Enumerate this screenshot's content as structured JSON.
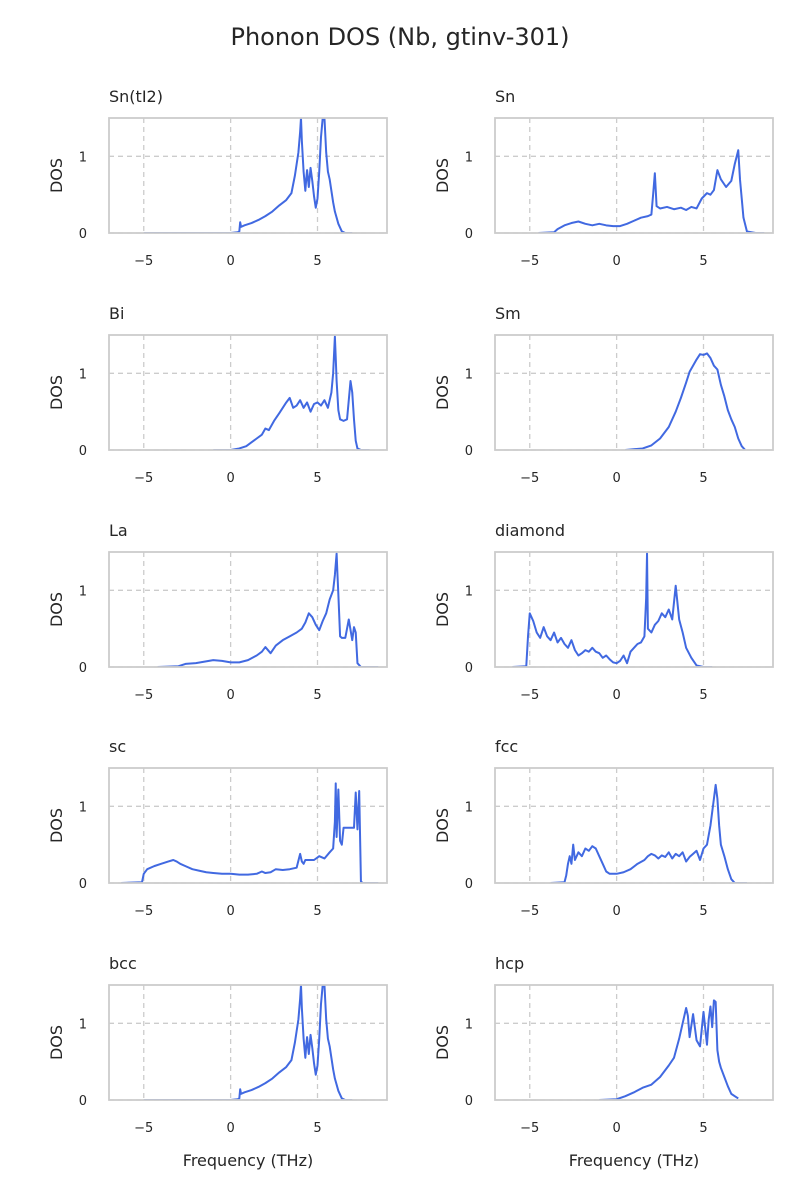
{
  "figure": {
    "title": "Phonon DOS (Nb, gtinv-301)",
    "line_color": "#4169e1",
    "grid_color": "#cccccc",
    "frame_color": "#cccccc",
    "text_color": "#262626"
  },
  "chart_data": [
    {
      "type": "line",
      "title": "Sn(tI2)",
      "xlabel": "",
      "ylabel": "DOS",
      "xlim": [
        -7,
        9
      ],
      "ylim": [
        0,
        1.5
      ],
      "xticks": [
        -5,
        0,
        5
      ],
      "xticklabels": [
        "−5",
        "0",
        "5"
      ],
      "yticks": [
        0,
        1
      ],
      "yticklabels": [
        "0",
        "1"
      ],
      "grid": true,
      "x": [
        -5,
        -3,
        -1,
        0,
        0.4,
        0.5,
        0.55,
        0.6,
        0.8,
        1.2,
        1.6,
        2.0,
        2.4,
        2.8,
        3.2,
        3.5,
        3.7,
        3.8,
        3.9,
        4.0,
        4.05,
        4.1,
        4.2,
        4.3,
        4.35,
        4.4,
        4.5,
        4.6,
        4.7,
        4.8,
        4.9,
        5.0,
        5.1,
        5.2,
        5.3,
        5.4,
        5.5,
        5.6,
        5.7,
        5.8,
        5.9,
        6.0,
        6.2,
        6.4,
        6.6,
        6.8,
        7.0
      ],
      "y": [
        0,
        0,
        0,
        0,
        0.01,
        0.02,
        0.14,
        0.08,
        0.1,
        0.13,
        0.17,
        0.22,
        0.28,
        0.36,
        0.43,
        0.52,
        0.75,
        0.9,
        1.05,
        1.32,
        1.5,
        1.2,
        0.8,
        0.55,
        0.7,
        0.82,
        0.6,
        0.85,
        0.68,
        0.48,
        0.33,
        0.45,
        0.8,
        1.25,
        1.5,
        1.5,
        1.05,
        0.8,
        0.7,
        0.55,
        0.4,
        0.28,
        0.12,
        0.02,
        0,
        0,
        0
      ]
    },
    {
      "type": "line",
      "title": "Sn",
      "xlabel": "",
      "ylabel": "DOS",
      "xlim": [
        -7,
        9
      ],
      "ylim": [
        0,
        1.5
      ],
      "xticks": [
        -5,
        0,
        5
      ],
      "xticklabels": [
        "−5",
        "0",
        "5"
      ],
      "yticks": [
        0,
        1
      ],
      "yticklabels": [
        "0",
        "1"
      ],
      "grid": true,
      "x": [
        -4.5,
        -3.6,
        -3.4,
        -3.0,
        -2.6,
        -2.2,
        -1.8,
        -1.4,
        -1.0,
        -0.6,
        -0.2,
        0.2,
        0.6,
        1.0,
        1.4,
        1.8,
        2.0,
        2.1,
        2.2,
        2.3,
        2.5,
        2.9,
        3.3,
        3.7,
        4.0,
        4.3,
        4.6,
        4.9,
        5.2,
        5.4,
        5.6,
        5.8,
        6.0,
        6.3,
        6.6,
        6.8,
        7.0,
        7.1,
        7.2,
        7.3,
        7.5,
        8.0,
        8.5
      ],
      "y": [
        0,
        0.01,
        0.05,
        0.1,
        0.13,
        0.15,
        0.12,
        0.1,
        0.12,
        0.1,
        0.09,
        0.09,
        0.12,
        0.16,
        0.2,
        0.22,
        0.24,
        0.5,
        0.78,
        0.35,
        0.32,
        0.34,
        0.31,
        0.33,
        0.3,
        0.34,
        0.32,
        0.45,
        0.52,
        0.5,
        0.56,
        0.82,
        0.7,
        0.6,
        0.68,
        0.9,
        1.08,
        0.7,
        0.45,
        0.2,
        0.02,
        0,
        0
      ]
    },
    {
      "type": "line",
      "title": "Bi",
      "xlabel": "",
      "ylabel": "DOS",
      "xlim": [
        -7,
        9
      ],
      "ylim": [
        0,
        1.5
      ],
      "xticks": [
        -5,
        0,
        5
      ],
      "xticklabels": [
        "−5",
        "0",
        "5"
      ],
      "yticks": [
        0,
        1
      ],
      "yticklabels": [
        "0",
        "1"
      ],
      "grid": true,
      "x": [
        -1,
        0,
        0.5,
        0.9,
        1.2,
        1.5,
        1.8,
        2.0,
        2.2,
        2.5,
        2.8,
        3.0,
        3.2,
        3.4,
        3.6,
        3.8,
        4.0,
        4.2,
        4.4,
        4.6,
        4.8,
        5.0,
        5.2,
        5.4,
        5.6,
        5.8,
        5.9,
        6.0,
        6.05,
        6.1,
        6.2,
        6.3,
        6.5,
        6.7,
        6.9,
        7.0,
        7.1,
        7.2,
        7.3,
        7.5,
        8.0
      ],
      "y": [
        0,
        0,
        0.02,
        0.05,
        0.1,
        0.15,
        0.2,
        0.28,
        0.26,
        0.38,
        0.48,
        0.55,
        0.62,
        0.68,
        0.55,
        0.58,
        0.65,
        0.55,
        0.62,
        0.5,
        0.6,
        0.62,
        0.58,
        0.65,
        0.55,
        0.75,
        1.0,
        1.48,
        1.2,
        0.9,
        0.52,
        0.4,
        0.38,
        0.4,
        0.9,
        0.75,
        0.4,
        0.12,
        0.02,
        0,
        0
      ]
    },
    {
      "type": "line",
      "title": "Sm",
      "xlabel": "",
      "ylabel": "DOS",
      "xlim": [
        -7,
        9
      ],
      "ylim": [
        0,
        1.5
      ],
      "xticks": [
        -5,
        0,
        5
      ],
      "xticklabels": [
        "−5",
        "0",
        "5"
      ],
      "yticks": [
        0,
        1
      ],
      "yticklabels": [
        "0",
        "1"
      ],
      "grid": true,
      "x": [
        0.5,
        1.5,
        2.0,
        2.5,
        3.0,
        3.4,
        3.7,
        4.0,
        4.2,
        4.4,
        4.6,
        4.8,
        5.0,
        5.2,
        5.4,
        5.6,
        5.8,
        6.0,
        6.2,
        6.4,
        6.6,
        6.8,
        7.0,
        7.2,
        7.4
      ],
      "y": [
        0,
        0.02,
        0.06,
        0.15,
        0.3,
        0.5,
        0.68,
        0.88,
        1.02,
        1.1,
        1.18,
        1.25,
        1.24,
        1.26,
        1.2,
        1.1,
        1.05,
        0.85,
        0.7,
        0.52,
        0.4,
        0.3,
        0.15,
        0.05,
        0
      ]
    },
    {
      "type": "line",
      "title": "La",
      "xlabel": "",
      "ylabel": "DOS",
      "xlim": [
        -7,
        9
      ],
      "ylim": [
        0,
        1.5
      ],
      "xticks": [
        -5,
        0,
        5
      ],
      "xticklabels": [
        "−5",
        "0",
        "5"
      ],
      "yticks": [
        0,
        1
      ],
      "yticklabels": [
        "0",
        "1"
      ],
      "grid": true,
      "x": [
        -4.2,
        -3.0,
        -2.6,
        -2.0,
        -1.5,
        -1.0,
        -0.5,
        0,
        0.5,
        1.0,
        1.5,
        1.8,
        2.0,
        2.3,
        2.6,
        3.0,
        3.4,
        3.8,
        4.1,
        4.3,
        4.5,
        4.7,
        4.9,
        5.1,
        5.3,
        5.5,
        5.7,
        5.9,
        6.0,
        6.1,
        6.15,
        6.2,
        6.3,
        6.4,
        6.6,
        6.8,
        7.0,
        7.1,
        7.2,
        7.3,
        7.5,
        8.5
      ],
      "y": [
        0,
        0.01,
        0.04,
        0.05,
        0.07,
        0.09,
        0.08,
        0.06,
        0.06,
        0.09,
        0.15,
        0.2,
        0.26,
        0.18,
        0.28,
        0.35,
        0.4,
        0.45,
        0.5,
        0.58,
        0.7,
        0.65,
        0.55,
        0.48,
        0.6,
        0.7,
        0.88,
        1.0,
        1.2,
        1.48,
        1.2,
        0.95,
        0.4,
        0.38,
        0.38,
        0.62,
        0.35,
        0.52,
        0.45,
        0.05,
        0,
        0
      ]
    },
    {
      "type": "line",
      "title": "diamond",
      "xlabel": "",
      "ylabel": "DOS",
      "xlim": [
        -7,
        9
      ],
      "ylim": [
        0,
        1.5
      ],
      "xticks": [
        -5,
        0,
        5
      ],
      "xticklabels": [
        "−5",
        "0",
        "5"
      ],
      "yticks": [
        0,
        1
      ],
      "yticklabels": [
        "0",
        "1"
      ],
      "grid": true,
      "x": [
        -6.0,
        -5.2,
        -5.1,
        -5.0,
        -4.8,
        -4.6,
        -4.4,
        -4.2,
        -4.0,
        -3.8,
        -3.6,
        -3.4,
        -3.2,
        -3.0,
        -2.8,
        -2.6,
        -2.4,
        -2.2,
        -2.0,
        -1.8,
        -1.6,
        -1.4,
        -1.2,
        -1.0,
        -0.8,
        -0.6,
        -0.4,
        -0.2,
        0,
        0.2,
        0.4,
        0.6,
        0.8,
        1.0,
        1.2,
        1.4,
        1.6,
        1.7,
        1.75,
        1.8,
        2.0,
        2.2,
        2.4,
        2.6,
        2.8,
        3.0,
        3.2,
        3.4,
        3.6,
        3.8,
        4.0,
        4.3,
        4.6,
        5.0,
        5.5
      ],
      "y": [
        0,
        0.01,
        0.4,
        0.7,
        0.6,
        0.45,
        0.38,
        0.52,
        0.4,
        0.35,
        0.45,
        0.32,
        0.38,
        0.3,
        0.25,
        0.35,
        0.22,
        0.15,
        0.18,
        0.22,
        0.2,
        0.25,
        0.2,
        0.18,
        0.12,
        0.15,
        0.1,
        0.06,
        0.05,
        0.08,
        0.15,
        0.05,
        0.2,
        0.25,
        0.3,
        0.32,
        0.4,
        0.9,
        1.48,
        0.5,
        0.45,
        0.55,
        0.6,
        0.7,
        0.65,
        0.75,
        0.62,
        1.06,
        0.62,
        0.45,
        0.25,
        0.12,
        0.02,
        0,
        0
      ]
    },
    {
      "type": "line",
      "title": "sc",
      "xlabel": "",
      "ylabel": "DOS",
      "xlim": [
        -7,
        9
      ],
      "ylim": [
        0,
        1.5
      ],
      "xticks": [
        -5,
        0,
        5
      ],
      "xticklabels": [
        "−5",
        "0",
        "5"
      ],
      "yticks": [
        0,
        1
      ],
      "yticklabels": [
        "0",
        "1"
      ],
      "grid": true,
      "x": [
        -6.3,
        -5.1,
        -5.0,
        -4.8,
        -4.4,
        -4.0,
        -3.6,
        -3.3,
        -3.1,
        -2.9,
        -2.6,
        -2.2,
        -1.8,
        -1.4,
        -1.0,
        -0.5,
        0,
        0.5,
        1.0,
        1.5,
        1.8,
        2.0,
        2.3,
        2.6,
        3.0,
        3.4,
        3.8,
        4.0,
        4.1,
        4.2,
        4.3,
        4.5,
        4.8,
        5.1,
        5.4,
        5.7,
        5.9,
        6.0,
        6.05,
        6.1,
        6.2,
        6.3,
        6.4,
        6.5,
        6.6,
        6.7,
        6.8,
        7.0,
        7.1,
        7.2,
        7.3,
        7.4,
        7.5,
        7.6,
        8.5
      ],
      "y": [
        0,
        0.01,
        0.12,
        0.18,
        0.22,
        0.25,
        0.28,
        0.3,
        0.28,
        0.25,
        0.22,
        0.18,
        0.16,
        0.14,
        0.13,
        0.12,
        0.12,
        0.11,
        0.11,
        0.12,
        0.15,
        0.13,
        0.14,
        0.18,
        0.17,
        0.18,
        0.2,
        0.38,
        0.28,
        0.25,
        0.3,
        0.3,
        0.3,
        0.35,
        0.32,
        0.4,
        0.45,
        0.8,
        1.3,
        0.6,
        1.22,
        0.55,
        0.5,
        0.72,
        0.72,
        0.72,
        0.72,
        0.72,
        0.72,
        1.18,
        0.7,
        1.2,
        0.02,
        0,
        0
      ]
    },
    {
      "type": "line",
      "title": "fcc",
      "xlabel": "",
      "ylabel": "DOS",
      "xlim": [
        -7,
        9
      ],
      "ylim": [
        0,
        1.5
      ],
      "xticks": [
        -5,
        0,
        5
      ],
      "xticklabels": [
        "−5",
        "0",
        "5"
      ],
      "yticks": [
        0,
        1
      ],
      "yticklabels": [
        "0",
        "1"
      ],
      "grid": true,
      "x": [
        -3.8,
        -3.0,
        -2.9,
        -2.8,
        -2.7,
        -2.6,
        -2.5,
        -2.4,
        -2.2,
        -2.0,
        -1.8,
        -1.6,
        -1.4,
        -1.2,
        -1.0,
        -0.8,
        -0.6,
        -0.4,
        0,
        0.4,
        0.8,
        1.2,
        1.6,
        1.8,
        2.0,
        2.2,
        2.4,
        2.6,
        2.8,
        3.0,
        3.2,
        3.4,
        3.6,
        3.8,
        4.0,
        4.2,
        4.4,
        4.6,
        4.8,
        5.0,
        5.2,
        5.4,
        5.6,
        5.7,
        5.8,
        5.9,
        6.0,
        6.2,
        6.4,
        6.6,
        6.8,
        7.0,
        7.5
      ],
      "y": [
        0,
        0.01,
        0.1,
        0.25,
        0.35,
        0.25,
        0.5,
        0.3,
        0.4,
        0.35,
        0.45,
        0.42,
        0.48,
        0.45,
        0.35,
        0.25,
        0.15,
        0.12,
        0.12,
        0.14,
        0.18,
        0.25,
        0.3,
        0.35,
        0.38,
        0.36,
        0.32,
        0.36,
        0.34,
        0.4,
        0.32,
        0.38,
        0.35,
        0.4,
        0.28,
        0.34,
        0.38,
        0.42,
        0.3,
        0.45,
        0.5,
        0.75,
        1.1,
        1.28,
        1.1,
        0.75,
        0.5,
        0.35,
        0.18,
        0.05,
        0,
        0,
        0
      ]
    },
    {
      "type": "line",
      "title": "bcc",
      "xlabel": "Frequency (THz)",
      "ylabel": "DOS",
      "xlim": [
        -7,
        9
      ],
      "ylim": [
        0,
        1.5
      ],
      "xticks": [
        -5,
        0,
        5
      ],
      "xticklabels": [
        "−5",
        "0",
        "5"
      ],
      "yticks": [
        0,
        1
      ],
      "yticklabels": [
        "0",
        "1"
      ],
      "grid": true,
      "x": [
        -5,
        -3,
        -1,
        0,
        0.4,
        0.5,
        0.55,
        0.6,
        0.8,
        1.2,
        1.6,
        2.0,
        2.4,
        2.8,
        3.2,
        3.5,
        3.7,
        3.8,
        3.9,
        4.0,
        4.05,
        4.1,
        4.2,
        4.3,
        4.35,
        4.4,
        4.5,
        4.6,
        4.7,
        4.8,
        4.9,
        5.0,
        5.1,
        5.2,
        5.3,
        5.4,
        5.5,
        5.6,
        5.7,
        5.8,
        5.9,
        6.0,
        6.2,
        6.4,
        6.6,
        6.8,
        7.0
      ],
      "y": [
        0,
        0,
        0,
        0,
        0.01,
        0.02,
        0.14,
        0.08,
        0.1,
        0.13,
        0.17,
        0.22,
        0.28,
        0.36,
        0.43,
        0.52,
        0.75,
        0.9,
        1.05,
        1.32,
        1.5,
        1.2,
        0.8,
        0.55,
        0.7,
        0.82,
        0.6,
        0.85,
        0.68,
        0.48,
        0.33,
        0.45,
        0.8,
        1.25,
        1.5,
        1.5,
        1.05,
        0.8,
        0.7,
        0.55,
        0.4,
        0.28,
        0.12,
        0.02,
        0,
        0,
        0
      ]
    },
    {
      "type": "line",
      "title": "hcp",
      "xlabel": "Frequency (THz)",
      "ylabel": "DOS",
      "xlim": [
        -7,
        9
      ],
      "ylim": [
        0,
        1.5
      ],
      "xticks": [
        -5,
        0,
        5
      ],
      "xticklabels": [
        "−5",
        "0",
        "5"
      ],
      "yticks": [
        0,
        1
      ],
      "yticklabels": [
        "0",
        "1"
      ],
      "grid": true,
      "x": [
        -1,
        0,
        0.5,
        1.0,
        1.5,
        2.0,
        2.5,
        3.0,
        3.3,
        3.6,
        3.8,
        4.0,
        4.1,
        4.2,
        4.4,
        4.6,
        4.8,
        5.0,
        5.2,
        5.3,
        5.4,
        5.5,
        5.6,
        5.7,
        5.8,
        5.9,
        6.0,
        6.2,
        6.4,
        6.6,
        6.8,
        7.0
      ],
      "y": [
        0,
        0.01,
        0.05,
        0.1,
        0.16,
        0.2,
        0.3,
        0.45,
        0.55,
        0.8,
        1.0,
        1.2,
        1.1,
        0.82,
        1.12,
        0.78,
        0.7,
        1.15,
        0.72,
        1.05,
        1.22,
        0.95,
        1.3,
        1.28,
        0.65,
        0.5,
        0.42,
        0.3,
        0.18,
        0.08,
        0.05,
        0.02
      ]
    }
  ]
}
